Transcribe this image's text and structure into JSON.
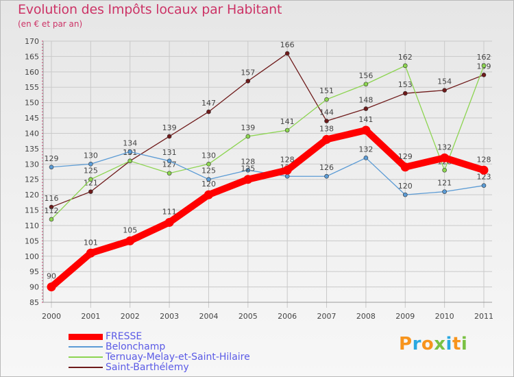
{
  "header": {
    "title": "Evolution des Impôts locaux par Habitant",
    "subtitle": "(en € et par an)"
  },
  "logo": {
    "text": "Proxiti",
    "colors": [
      "#f7941d",
      "#2aa8e0",
      "#f7941d",
      "#7ac143",
      "#2aa8e0",
      "#f7941d",
      "#7ac143"
    ]
  },
  "chart_data": {
    "type": "line",
    "title": "Evolution des Impôts locaux par Habitant",
    "subtitle": "(en € et par an)",
    "xlabel": "",
    "ylabel": "",
    "ylim": [
      85,
      170
    ],
    "yticks": [
      85,
      90,
      95,
      100,
      105,
      110,
      115,
      120,
      125,
      130,
      135,
      140,
      145,
      150,
      155,
      160,
      165,
      170
    ],
    "categories": [
      "2000",
      "2001",
      "2002",
      "2003",
      "2004",
      "2005",
      "2006",
      "2007",
      "2008",
      "2009",
      "2010",
      "2011"
    ],
    "grid": true,
    "legend_position": "bottom-left",
    "series": [
      {
        "name": "Saint-Barthélemy",
        "color": "#6e1a1a",
        "values": [
          116,
          121,
          131,
          139,
          147,
          157,
          166,
          144,
          148,
          153,
          154,
          159
        ]
      },
      {
        "name": "Ternuay-Melay-et-Saint-Hilaire",
        "color": "#8cd450",
        "values": [
          112,
          125,
          131,
          127,
          130,
          139,
          141,
          151,
          156,
          162,
          128,
          162
        ]
      },
      {
        "name": "Belonchamp",
        "color": "#5b9bd5",
        "values": [
          129,
          130,
          134,
          131,
          125,
          128,
          126,
          126,
          132,
          120,
          121,
          123
        ]
      },
      {
        "name": "FRESSE",
        "color": "#ff0000",
        "values": [
          90,
          101,
          105,
          111,
          120,
          125,
          128,
          138,
          141,
          129,
          132,
          128
        ]
      }
    ],
    "legend": [
      "FRESSE",
      "Belonchamp",
      "Ternuay-Melay-et-Saint-Hilaire",
      "Saint-Barthélemy"
    ]
  }
}
